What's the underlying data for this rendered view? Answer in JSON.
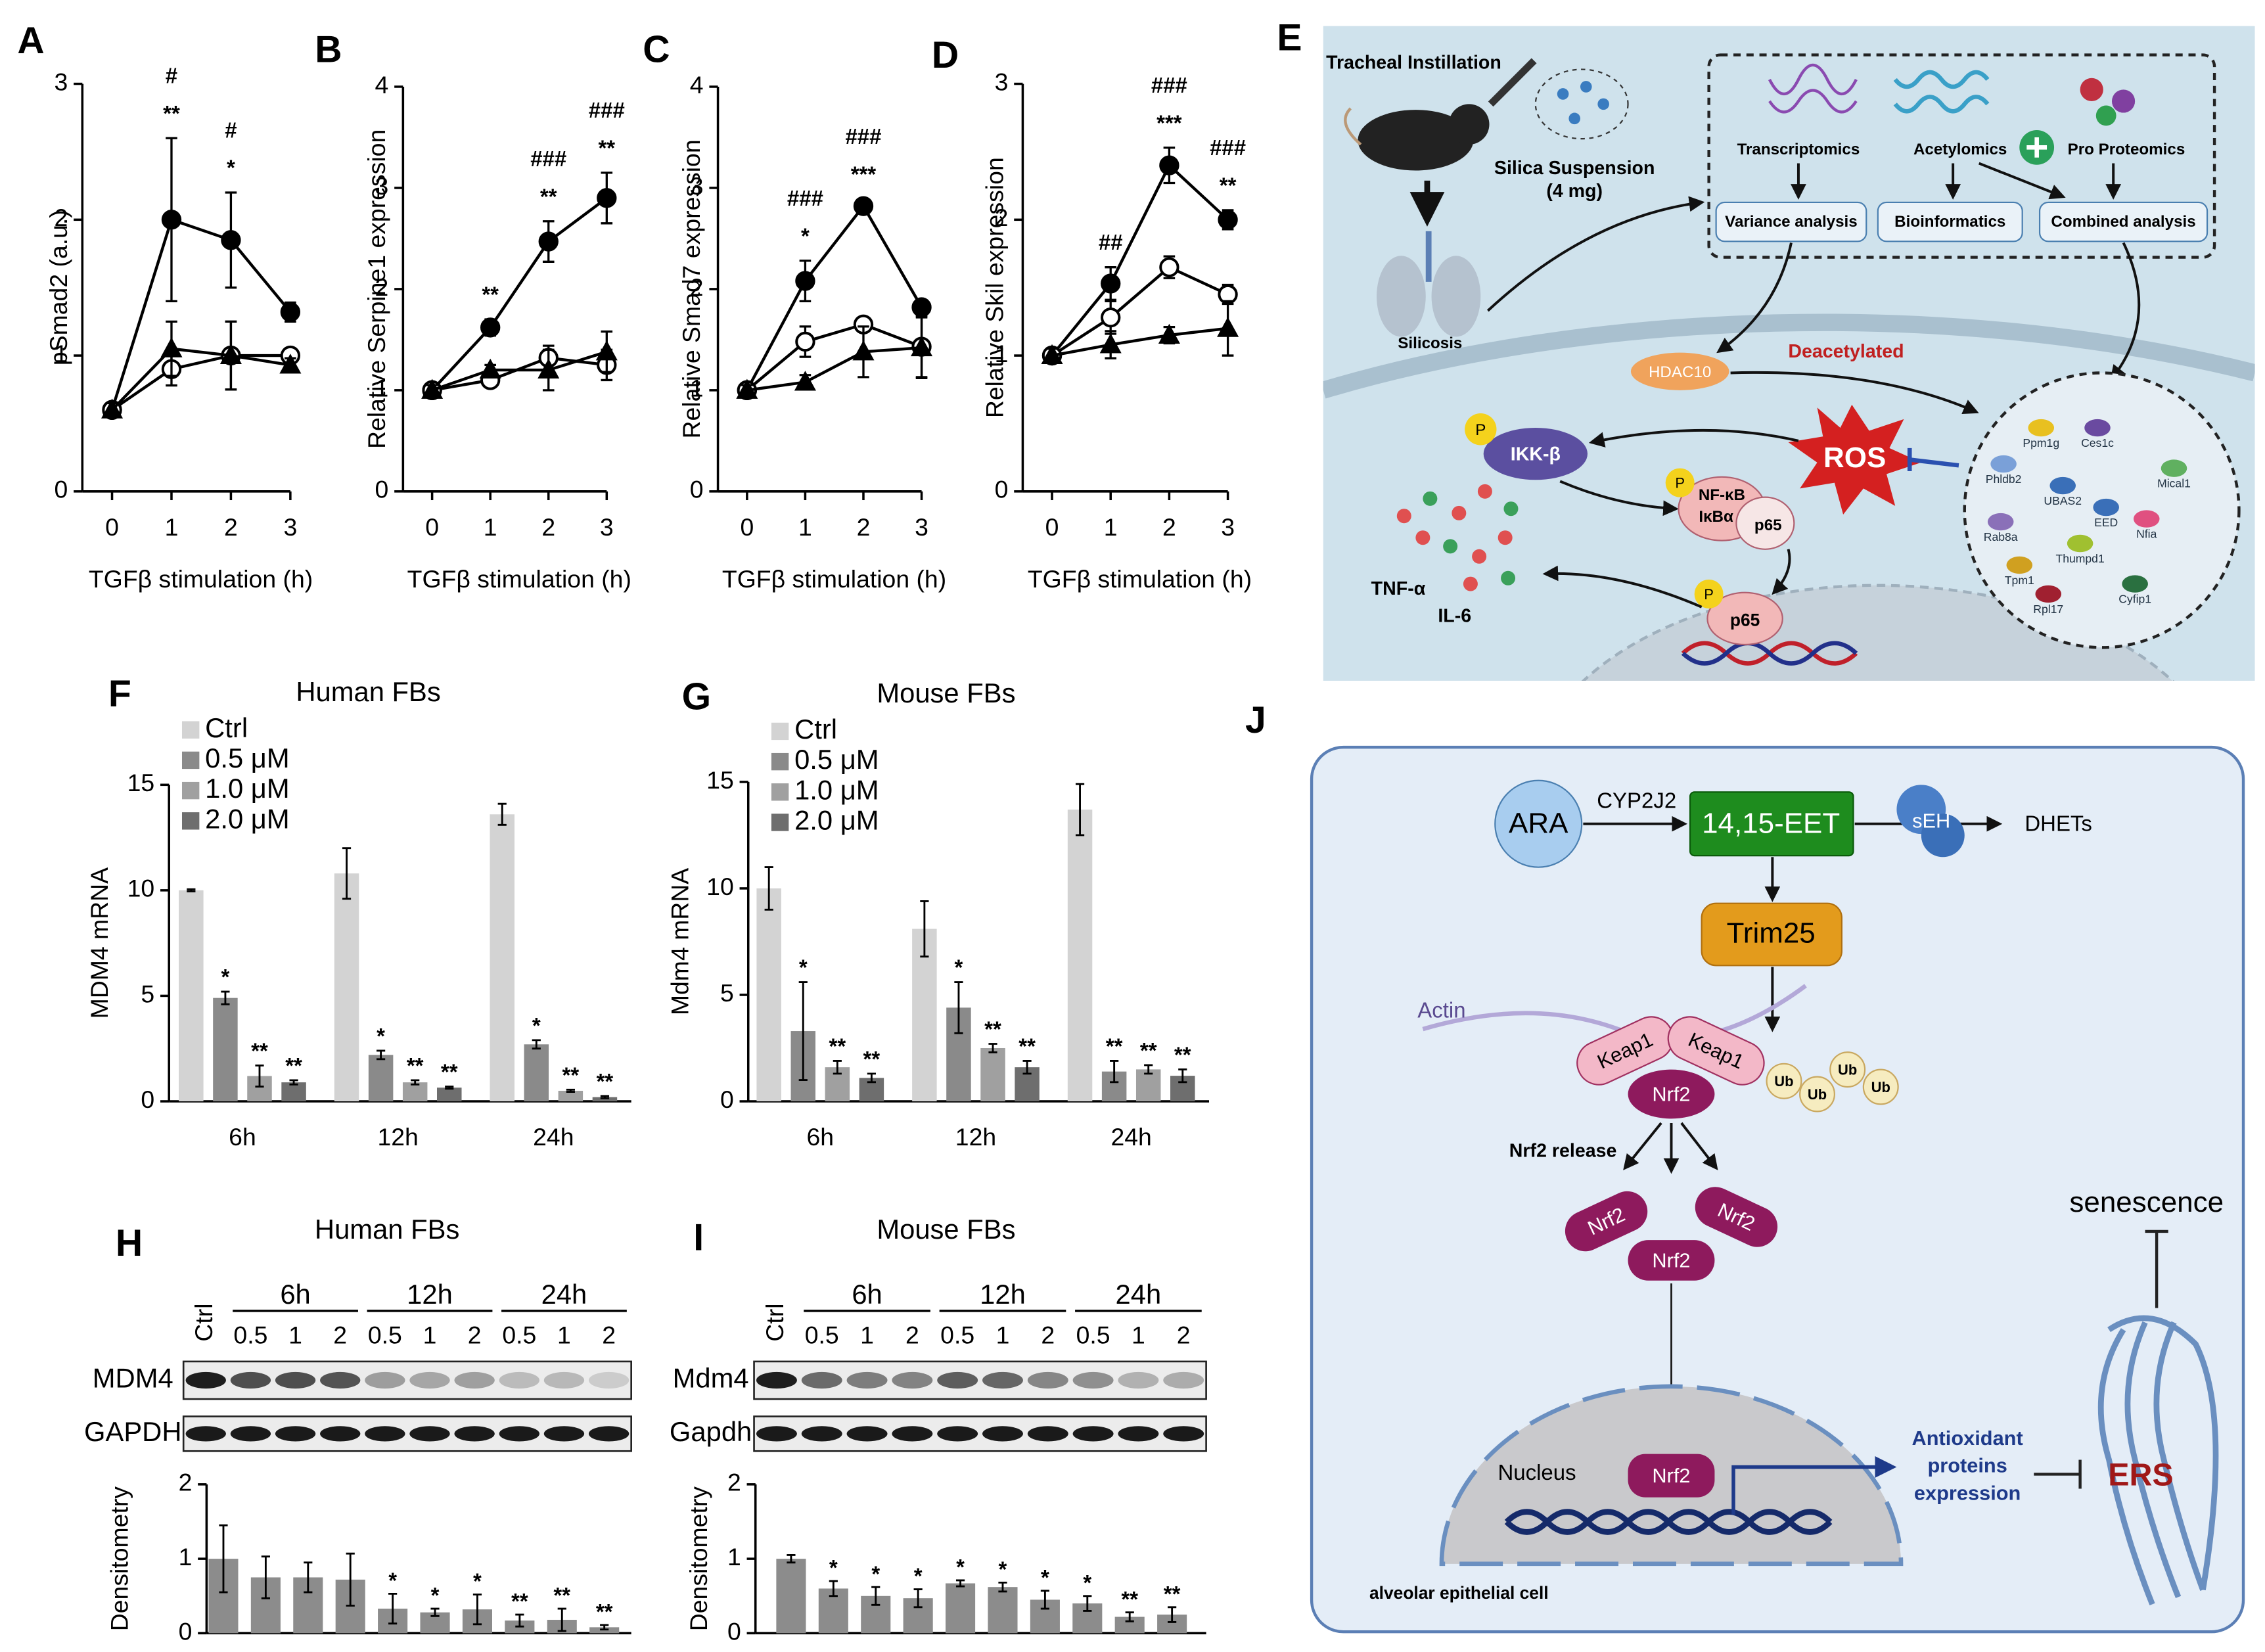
{
  "panel_labels": [
    "A",
    "B",
    "C",
    "D",
    "E",
    "F",
    "G",
    "H",
    "I",
    "J"
  ],
  "chart_data": [
    {
      "type": "line",
      "ylabel": "pSmad2 (a.u.)",
      "xlabel": "TGFβ stimulation (h)",
      "x": [
        0,
        1,
        2,
        3
      ],
      "xlim": [
        -0.5,
        3
      ],
      "xticks": [
        0,
        1,
        2,
        3
      ],
      "ylim": [
        0,
        3
      ],
      "yticks": [
        0,
        1,
        2,
        3
      ],
      "series": [
        {
          "marker": "filled-circle",
          "color": "#000000",
          "values": [
            0.6,
            2.0,
            1.85,
            1.32
          ],
          "errors": [
            0.05,
            0.6,
            0.35,
            0.07
          ]
        },
        {
          "marker": "open-circle",
          "color": "#000000",
          "values": [
            0.6,
            0.9,
            1.0,
            1.0
          ],
          "errors": [
            0.05,
            0.12,
            0.25,
            0.05
          ]
        },
        {
          "marker": "triangle",
          "color": "#000000",
          "values": [
            0.6,
            1.05,
            1.0,
            0.93
          ],
          "errors": [
            0.05,
            0.2,
            0.25,
            0.05
          ]
        }
      ],
      "annotations": [
        {
          "x": 1,
          "text": "**"
        },
        {
          "x": 1,
          "text": "#"
        },
        {
          "x": 2,
          "text": "*"
        },
        {
          "x": 2,
          "text": "#"
        }
      ]
    },
    {
      "type": "line",
      "ylabel": "Relative Serpine1 expression",
      "xlabel": "TGFβ stimulation (h)",
      "x": [
        0,
        1,
        2,
        3
      ],
      "xlim": [
        -0.5,
        3
      ],
      "xticks": [
        0,
        1,
        2,
        3
      ],
      "ylim": [
        0,
        4
      ],
      "yticks": [
        0,
        1,
        2,
        3,
        4
      ],
      "series": [
        {
          "marker": "filled-circle",
          "color": "#000000",
          "values": [
            1.0,
            1.62,
            2.47,
            2.9
          ],
          "errors": [
            0.05,
            0.08,
            0.2,
            0.25
          ]
        },
        {
          "marker": "open-circle",
          "color": "#000000",
          "values": [
            1.0,
            1.1,
            1.32,
            1.25
          ],
          "errors": [
            0.05,
            0.05,
            0.12,
            0.15
          ]
        },
        {
          "marker": "triangle",
          "color": "#000000",
          "values": [
            1.0,
            1.2,
            1.2,
            1.38
          ],
          "errors": [
            0.05,
            0.05,
            0.2,
            0.2
          ]
        }
      ],
      "annotations": [
        {
          "x": 1,
          "text": "**"
        },
        {
          "x": 2,
          "text": "**"
        },
        {
          "x": 2,
          "text": "###"
        },
        {
          "x": 3,
          "text": "**"
        },
        {
          "x": 3,
          "text": "###"
        }
      ]
    },
    {
      "type": "line",
      "ylabel": "Relative Smad7 expression",
      "xlabel": "TGFβ stimulation (h)",
      "x": [
        0,
        1,
        2,
        3
      ],
      "xlim": [
        -0.5,
        3
      ],
      "xticks": [
        0,
        1,
        2,
        3
      ],
      "ylim": [
        0,
        4
      ],
      "yticks": [
        0,
        1,
        2,
        3,
        4
      ],
      "series": [
        {
          "marker": "filled-circle",
          "color": "#000000",
          "values": [
            1.0,
            2.08,
            2.82,
            1.82
          ],
          "errors": [
            0.05,
            0.2,
            0.07,
            0.07
          ]
        },
        {
          "marker": "open-circle",
          "color": "#000000",
          "values": [
            1.0,
            1.48,
            1.65,
            1.43
          ],
          "errors": [
            0.05,
            0.15,
            0.07,
            0.3
          ]
        },
        {
          "marker": "triangle",
          "color": "#000000",
          "values": [
            1.0,
            1.08,
            1.38,
            1.42
          ],
          "errors": [
            0.05,
            0.07,
            0.25,
            0.3
          ]
        }
      ],
      "annotations": [
        {
          "x": 1,
          "text": "*"
        },
        {
          "x": 1,
          "text": "###"
        },
        {
          "x": 2,
          "text": "***"
        },
        {
          "x": 2,
          "text": "###"
        }
      ]
    },
    {
      "type": "line",
      "ylabel": "Relative Skil expression",
      "xlabel": "TGFβ stimulation (h)",
      "x": [
        0,
        1,
        2,
        3
      ],
      "xlim": [
        -0.5,
        3
      ],
      "xticks": [
        0,
        1,
        2,
        3
      ],
      "ylim": [
        0,
        3
      ],
      "yticks": [
        0,
        1,
        2,
        3
      ],
      "series": [
        {
          "marker": "filled-circle",
          "color": "#000000",
          "values": [
            1.0,
            1.53,
            2.4,
            2.0
          ],
          "errors": [
            0.05,
            0.12,
            0.13,
            0.07
          ]
        },
        {
          "marker": "open-circle",
          "color": "#000000",
          "values": [
            1.0,
            1.28,
            1.65,
            1.45
          ],
          "errors": [
            0.05,
            0.12,
            0.08,
            0.07
          ]
        },
        {
          "marker": "triangle",
          "color": "#000000",
          "values": [
            1.0,
            1.08,
            1.15,
            1.2
          ],
          "errors": [
            0.05,
            0.1,
            0.06,
            0.2
          ]
        }
      ],
      "annotations": [
        {
          "x": 1,
          "text": "##"
        },
        {
          "x": 2,
          "text": "***"
        },
        {
          "x": 2,
          "text": "###"
        },
        {
          "x": 3,
          "text": "**"
        },
        {
          "x": 3,
          "text": "###"
        }
      ]
    },
    {
      "type": "bar",
      "title": "Human FBs",
      "ylabel": "MDM4 mRNA",
      "categories": [
        "6h",
        "12h",
        "24h"
      ],
      "ylim": [
        0,
        15
      ],
      "yticks": [
        0,
        5,
        10,
        15
      ],
      "legend": "upper left",
      "series": [
        {
          "name": "Ctrl",
          "color": "#d3d3d3",
          "values": [
            10.0,
            10.8,
            13.6
          ],
          "errors": [
            0.05,
            1.2,
            0.5
          ]
        },
        {
          "name": "0.5 μM",
          "color": "#8a8a8a",
          "values": [
            4.9,
            2.2,
            2.7
          ],
          "errors": [
            0.3,
            0.2,
            0.2
          ],
          "sig": [
            "*",
            "*",
            "*"
          ]
        },
        {
          "name": "1.0 μM",
          "color": "#a0a0a0",
          "values": [
            1.2,
            0.9,
            0.5
          ],
          "errors": [
            0.5,
            0.1,
            0.05
          ],
          "sig": [
            "**",
            "**",
            "**"
          ]
        },
        {
          "name": "2.0 μM",
          "color": "#6e6e6e",
          "values": [
            0.9,
            0.65,
            0.2
          ],
          "errors": [
            0.1,
            0.05,
            0.05
          ],
          "sig": [
            "**",
            "**",
            "**"
          ]
        }
      ]
    },
    {
      "type": "bar",
      "title": "Mouse FBs",
      "ylabel": "Mdm4 mRNA",
      "categories": [
        "6h",
        "12h",
        "24h"
      ],
      "ylim": [
        0,
        15
      ],
      "yticks": [
        0,
        5,
        10,
        15
      ],
      "legend": "upper left",
      "series": [
        {
          "name": "Ctrl",
          "color": "#d3d3d3",
          "values": [
            10.0,
            8.1,
            13.7
          ],
          "errors": [
            1.0,
            1.3,
            1.2
          ]
        },
        {
          "name": "0.5 μM",
          "color": "#8a8a8a",
          "values": [
            3.3,
            4.4,
            1.4
          ],
          "errors": [
            2.3,
            1.2,
            0.5
          ],
          "sig": [
            "*",
            "*",
            "**"
          ]
        },
        {
          "name": "1.0 μM",
          "color": "#a0a0a0",
          "values": [
            1.6,
            2.5,
            1.5
          ],
          "errors": [
            0.3,
            0.2,
            0.2
          ],
          "sig": [
            "**",
            "**",
            "**"
          ]
        },
        {
          "name": "2.0 μM",
          "color": "#6e6e6e",
          "values": [
            1.1,
            1.6,
            1.2
          ],
          "errors": [
            0.2,
            0.3,
            0.3
          ],
          "sig": [
            "**",
            "**",
            "**"
          ]
        }
      ]
    },
    {
      "type": "bar",
      "title": "Human FBs",
      "ylabel": "Densitometry",
      "color": "#8c8c8c",
      "ylim": [
        0,
        2
      ],
      "yticks": [
        0,
        1,
        2
      ],
      "categories": [
        "Ctrl",
        "0.5",
        "1",
        "2",
        "0.5",
        "1",
        "2",
        "0.5",
        "1",
        "2"
      ],
      "groups": [
        "6h",
        "12h",
        "24h"
      ],
      "blots": [
        "MDM4",
        "GAPDH"
      ],
      "values": [
        1.0,
        0.75,
        0.75,
        0.72,
        0.33,
        0.28,
        0.32,
        0.17,
        0.18,
        0.08
      ],
      "errors": [
        0.45,
        0.28,
        0.2,
        0.35,
        0.2,
        0.05,
        0.2,
        0.08,
        0.15,
        0.03
      ],
      "sig": [
        null,
        null,
        null,
        null,
        "*",
        "*",
        "*",
        "**",
        "**",
        "**"
      ]
    },
    {
      "type": "bar",
      "title": "Mouse FBs",
      "ylabel": "Densitometry",
      "color": "#8c8c8c",
      "ylim": [
        0,
        2
      ],
      "yticks": [
        0,
        1,
        2
      ],
      "categories": [
        "Ctrl",
        "0.5",
        "1",
        "2",
        "0.5",
        "1",
        "2",
        "0.5",
        "1",
        "2"
      ],
      "groups": [
        "6h",
        "12h",
        "24h"
      ],
      "blots": [
        "Mdm4",
        "Gapdh"
      ],
      "values": [
        1.0,
        0.6,
        0.5,
        0.47,
        0.67,
        0.62,
        0.45,
        0.4,
        0.22,
        0.25
      ],
      "errors": [
        0.05,
        0.1,
        0.12,
        0.12,
        0.04,
        0.06,
        0.12,
        0.1,
        0.06,
        0.1
      ],
      "sig": [
        null,
        "*",
        "*",
        "*",
        "*",
        "*",
        "*",
        "*",
        "**",
        "**"
      ]
    }
  ],
  "diagram_e": {
    "tracheal": "Tracheal Instillation",
    "silica": [
      "Silica Suspension",
      "(4 mg)"
    ],
    "silicosis": "Silicosis",
    "omics": [
      "Transcriptomics",
      "Acetylomics",
      "Pro Proteomics"
    ],
    "analyses": [
      "Variance analysis",
      "Bioinformatics",
      "Combined analysis"
    ],
    "hdac": "HDAC10",
    "deacetylated": "Deacetylated",
    "ikk": "IKK-β",
    "ros": "ROS",
    "nfkb": "NF-κB",
    "ikba": "IκBα",
    "p65": "p65",
    "phospho": "P",
    "cytokines": [
      "TNF-α",
      "IL-6"
    ],
    "proteins": [
      "Ppm1g",
      "Ces1c",
      "Phldb2",
      "Mical1",
      "UBAS2",
      "EED",
      "Nfia",
      "Rab8a",
      "Thumpd1",
      "Tpm1",
      "Rpl17",
      "Cyfip1"
    ]
  },
  "diagram_j": {
    "ara": "ARA",
    "cyp": "CYP2J2",
    "eet": "14,15-EET",
    "seh": "sEH",
    "dhets": "DHETs",
    "trim": "Trim25",
    "actin": "Actin",
    "keap": "Keap1",
    "nrf2": "Nrf2",
    "ub": "Ub",
    "release": "Nrf2 release",
    "nucleus": "Nucleus",
    "antioxidant": [
      "Antioxidant",
      "proteins",
      "expression"
    ],
    "ers": "ERS",
    "senescence": "senescence",
    "cell": "alveolar epithelial cell"
  }
}
